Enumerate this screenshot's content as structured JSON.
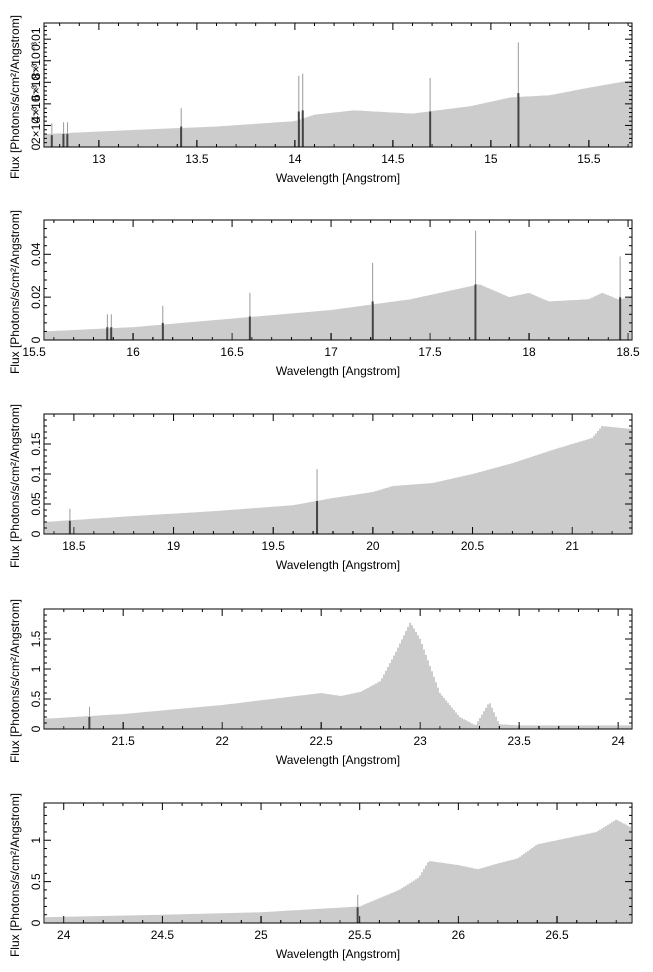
{
  "chart_data": [
    {
      "type": "bar",
      "xlabel": "Wavelength [Angstrom]",
      "ylabel": "Flux [Photons/s/cm²/Angstrom]",
      "xlim": [
        12.72,
        15.72
      ],
      "ylim": [
        0,
        0.0115
      ],
      "xticks": [
        13,
        13.5,
        14,
        14.5,
        15,
        15.5
      ],
      "xtick_labels": [
        "13",
        "13.5",
        "14",
        "14.5",
        "15",
        "15.5"
      ],
      "yticks": [
        0,
        0.002,
        0.004,
        0.006,
        0.008,
        0.01
      ],
      "ytick_labels": [
        "0",
        "2×10⁻³",
        "4×10⁻³",
        "6×10⁻³",
        "8×10⁻³",
        "0.01"
      ],
      "continuum": [
        [
          12.72,
          0.0012
        ],
        [
          13.2,
          0.0016
        ],
        [
          13.6,
          0.0019
        ],
        [
          14.0,
          0.0024
        ],
        [
          14.1,
          0.003
        ],
        [
          14.3,
          0.0034
        ],
        [
          14.6,
          0.0031
        ],
        [
          14.9,
          0.0038
        ],
        [
          15.1,
          0.0046
        ],
        [
          15.3,
          0.0048
        ],
        [
          15.5,
          0.0055
        ],
        [
          15.72,
          0.0062
        ]
      ],
      "lines": [
        {
          "x": 12.76,
          "y": 0.0011,
          "peak": 0.0022
        },
        {
          "x": 12.82,
          "y": 0.0012,
          "peak": 0.0023
        },
        {
          "x": 12.84,
          "y": 0.0012,
          "peak": 0.0023
        },
        {
          "x": 13.42,
          "y": 0.0019,
          "peak": 0.0036
        },
        {
          "x": 14.02,
          "y": 0.0033,
          "peak": 0.0066
        },
        {
          "x": 14.04,
          "y": 0.0034,
          "peak": 0.0068
        },
        {
          "x": 14.69,
          "y": 0.0033,
          "peak": 0.0064
        },
        {
          "x": 15.14,
          "y": 0.005,
          "peak": 0.0097
        }
      ]
    },
    {
      "type": "bar",
      "xlabel": "Wavelength [Angstrom]",
      "ylabel": "Flux [Photons/s/cm²/Angstrom]",
      "xlim": [
        15.55,
        18.52
      ],
      "ylim": [
        0,
        0.056
      ],
      "xticks": [
        15.5,
        16,
        16.5,
        17,
        17.5,
        18,
        18.5
      ],
      "xtick_labels": [
        "15.5",
        "16",
        "16.5",
        "17",
        "17.5",
        "18",
        "18.5"
      ],
      "yticks": [
        0,
        0.02,
        0.04
      ],
      "ytick_labels": [
        "0",
        "0.02",
        "0.04"
      ],
      "continuum": [
        [
          15.55,
          0.004
        ],
        [
          16.0,
          0.006
        ],
        [
          16.5,
          0.01
        ],
        [
          17.0,
          0.014
        ],
        [
          17.4,
          0.019
        ],
        [
          17.6,
          0.023
        ],
        [
          17.75,
          0.026
        ],
        [
          17.9,
          0.02
        ],
        [
          18.0,
          0.022
        ],
        [
          18.1,
          0.018
        ],
        [
          18.3,
          0.019
        ],
        [
          18.37,
          0.022
        ],
        [
          18.45,
          0.019
        ],
        [
          18.52,
          0.02
        ]
      ],
      "lines": [
        {
          "x": 15.87,
          "y": 0.006,
          "peak": 0.012
        },
        {
          "x": 15.89,
          "y": 0.006,
          "peak": 0.012
        },
        {
          "x": 16.15,
          "y": 0.008,
          "peak": 0.016
        },
        {
          "x": 16.59,
          "y": 0.011,
          "peak": 0.022
        },
        {
          "x": 17.21,
          "y": 0.018,
          "peak": 0.036
        },
        {
          "x": 17.73,
          "y": 0.026,
          "peak": 0.051
        },
        {
          "x": 18.46,
          "y": 0.02,
          "peak": 0.039
        }
      ]
    },
    {
      "type": "bar",
      "xlabel": "Wavelength [Angstrom]",
      "ylabel": "Flux [Photons/s/cm²/Angstrom]",
      "xlim": [
        18.35,
        21.3
      ],
      "ylim": [
        0,
        0.2
      ],
      "xticks": [
        18.5,
        19,
        19.5,
        20,
        20.5,
        21
      ],
      "xtick_labels": [
        "18.5",
        "19",
        "19.5",
        "20",
        "20.5",
        "21"
      ],
      "yticks": [
        0,
        0.05,
        0.1,
        0.15
      ],
      "ytick_labels": [
        "0",
        "0.05",
        "0.1",
        "0.15"
      ],
      "continuum": [
        [
          18.35,
          0.02
        ],
        [
          18.8,
          0.03
        ],
        [
          19.2,
          0.038
        ],
        [
          19.6,
          0.048
        ],
        [
          19.8,
          0.06
        ],
        [
          20.0,
          0.07
        ],
        [
          20.1,
          0.08
        ],
        [
          20.3,
          0.085
        ],
        [
          20.5,
          0.1
        ],
        [
          20.7,
          0.118
        ],
        [
          20.9,
          0.14
        ],
        [
          21.1,
          0.16
        ],
        [
          21.15,
          0.18
        ],
        [
          21.3,
          0.175
        ]
      ],
      "lines": [
        {
          "x": 18.48,
          "y": 0.022,
          "peak": 0.042
        },
        {
          "x": 19.72,
          "y": 0.055,
          "peak": 0.108
        }
      ]
    },
    {
      "type": "bar",
      "xlabel": "Wavelength [Angstrom]",
      "ylabel": "Flux [Photons/s/cm²/Angstrom]",
      "xlim": [
        21.1,
        24.07
      ],
      "ylim": [
        0,
        2.0
      ],
      "xticks": [
        21.5,
        22,
        22.5,
        23,
        23.5,
        24
      ],
      "xtick_labels": [
        "21.5",
        "22",
        "22.5",
        "23",
        "23.5",
        "24"
      ],
      "yticks": [
        0,
        0.5,
        1,
        1.5
      ],
      "ytick_labels": [
        "0",
        "0.5",
        "1",
        "1.5"
      ],
      "continuum": [
        [
          21.1,
          0.17
        ],
        [
          21.5,
          0.25
        ],
        [
          22.0,
          0.4
        ],
        [
          22.5,
          0.6
        ],
        [
          22.6,
          0.55
        ],
        [
          22.7,
          0.62
        ],
        [
          22.8,
          0.8
        ],
        [
          22.88,
          1.3
        ],
        [
          22.95,
          1.78
        ],
        [
          23.0,
          1.5
        ],
        [
          23.1,
          0.6
        ],
        [
          23.2,
          0.2
        ],
        [
          23.28,
          0.06
        ],
        [
          23.35,
          0.45
        ],
        [
          23.4,
          0.08
        ],
        [
          23.5,
          0.06
        ],
        [
          24.07,
          0.06
        ]
      ],
      "lines": [
        {
          "x": 21.33,
          "y": 0.2,
          "peak": 0.37
        }
      ]
    },
    {
      "type": "bar",
      "xlabel": "Wavelength [Angstrom]",
      "ylabel": "Flux [Photons/s/cm²/Angstrom]",
      "xlim": [
        23.9,
        26.88
      ],
      "ylim": [
        0,
        1.45
      ],
      "xticks": [
        24,
        24.5,
        25,
        25.5,
        26,
        26.5
      ],
      "xtick_labels": [
        "24",
        "24.5",
        "25",
        "25.5",
        "26",
        "26.5"
      ],
      "yticks": [
        0,
        0.5,
        1
      ],
      "ytick_labels": [
        "0",
        "0.5",
        "1"
      ],
      "continuum": [
        [
          23.9,
          0.07
        ],
        [
          24.5,
          0.1
        ],
        [
          25.0,
          0.13
        ],
        [
          25.5,
          0.2
        ],
        [
          25.7,
          0.4
        ],
        [
          25.8,
          0.55
        ],
        [
          25.85,
          0.75
        ],
        [
          26.0,
          0.7
        ],
        [
          26.1,
          0.65
        ],
        [
          26.2,
          0.72
        ],
        [
          26.3,
          0.78
        ],
        [
          26.4,
          0.95
        ],
        [
          26.6,
          1.05
        ],
        [
          26.7,
          1.1
        ],
        [
          26.8,
          1.25
        ],
        [
          26.88,
          1.15
        ]
      ],
      "lines": [
        {
          "x": 25.49,
          "y": 0.19,
          "peak": 0.34
        }
      ]
    }
  ]
}
